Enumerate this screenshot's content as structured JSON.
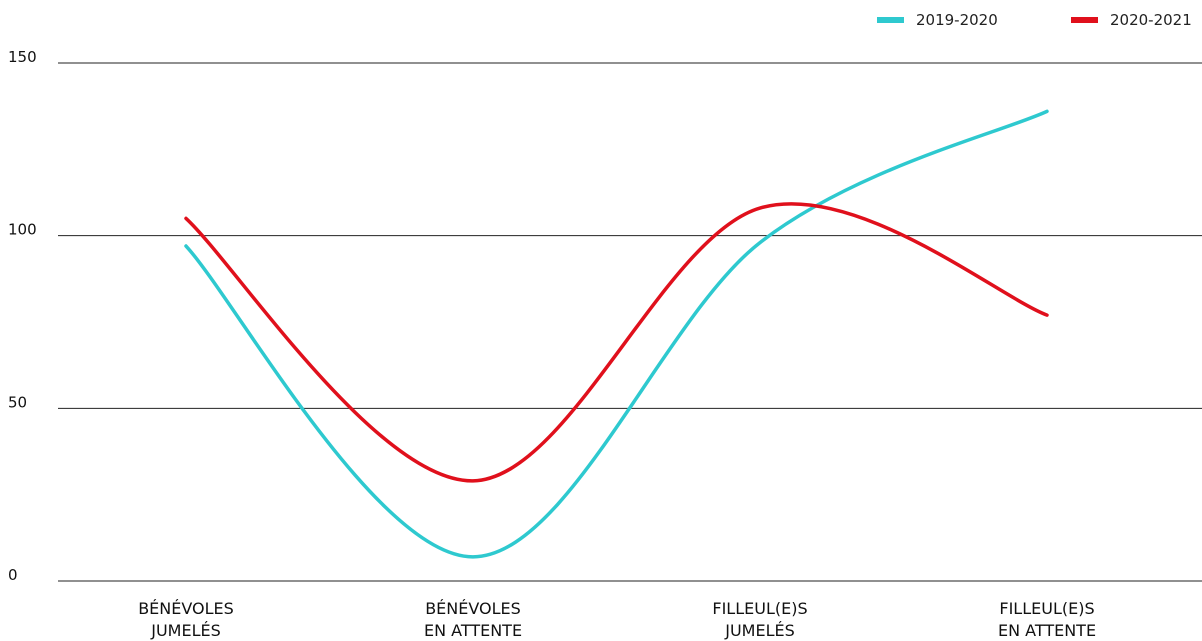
{
  "chart_data": {
    "type": "line",
    "categories": [
      [
        "BÉNÉVOLES",
        "JUMELÉS"
      ],
      [
        "BÉNÉVOLES",
        "EN ATTENTE"
      ],
      [
        "FILLEUL(E)S",
        "JUMELÉS"
      ],
      [
        "FILLEUL(E)S",
        "EN ATTENTE"
      ]
    ],
    "series": [
      {
        "name": "2019-2020",
        "color": "#2ec9cf",
        "values": [
          97,
          7,
          98,
          136
        ]
      },
      {
        "name": "2020-2021",
        "color": "#e0101c",
        "values": [
          105,
          29,
          108,
          77
        ]
      }
    ],
    "ylim": [
      0,
      150
    ],
    "yticks": [
      "0",
      "50",
      "100",
      "150"
    ],
    "smooth": true,
    "grid": "horizontal",
    "legend": "top-right"
  }
}
